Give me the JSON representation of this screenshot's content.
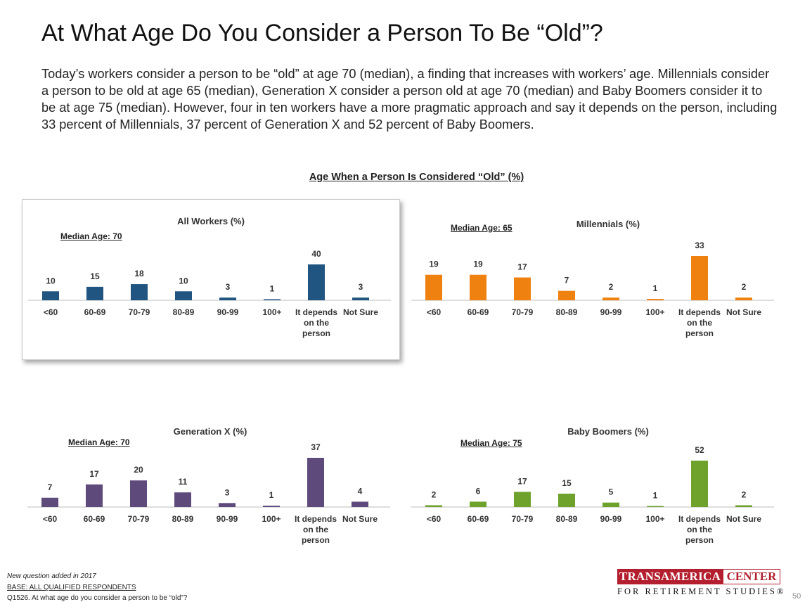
{
  "title": "At What Age Do You Consider a Person To Be “Old”?",
  "intro": "Today’s workers consider a person to be “old” at age 70 (median), a finding that increases with workers’ age. Millennials consider a person to be old at age 65 (median), Generation X consider a person old at age 70 (median) and Baby Boomers consider it to be at age 75 (median). However, four in ten workers have a more pragmatic approach and say it depends on the person, including 33 percent of Millennials, 37 percent of Generation X and 52 percent of Baby Boomers.",
  "section_title": "Age When a Person Is Considered “Old” (%)",
  "chart_data": [
    {
      "type": "bar",
      "title": "All Workers (%)",
      "median": "Median Age: 70",
      "color": "#1f5580",
      "categories": [
        "<60",
        "60-69",
        "70-79",
        "80-89",
        "90-99",
        "100+",
        "It depends on the person",
        "Not Sure"
      ],
      "values": [
        10,
        15,
        18,
        10,
        3,
        1,
        40,
        3
      ],
      "ylim": [
        0,
        40
      ]
    },
    {
      "type": "bar",
      "title": "Millennials (%)",
      "median": "Median Age: 65",
      "color": "#ef8110",
      "categories": [
        "<60",
        "60-69",
        "70-79",
        "80-89",
        "90-99",
        "100+",
        "It depends on the person",
        "Not Sure"
      ],
      "values": [
        19,
        19,
        17,
        7,
        2,
        1,
        33,
        2
      ],
      "ylim": [
        0,
        33
      ]
    },
    {
      "type": "bar",
      "title": "Generation X (%)",
      "median": "Median Age: 70",
      "color": "#5f4a7c",
      "categories": [
        "<60",
        "60-69",
        "70-79",
        "80-89",
        "90-99",
        "100+",
        "It depends on the person",
        "Not Sure"
      ],
      "values": [
        7,
        17,
        20,
        11,
        3,
        1,
        37,
        4
      ],
      "ylim": [
        0,
        37
      ]
    },
    {
      "type": "bar",
      "title": "Baby Boomers (%)",
      "median": "Median Age: 75",
      "color": "#6ea22c",
      "categories": [
        "<60",
        "60-69",
        "70-79",
        "80-89",
        "90-99",
        "100+",
        "It depends on the person",
        "Not Sure"
      ],
      "values": [
        2,
        6,
        17,
        15,
        5,
        1,
        52,
        2
      ],
      "ylim": [
        0,
        52
      ]
    }
  ],
  "footer": {
    "note": "New question added in 2017",
    "base": "BASE:  ALL QUALIFIED RESPONDENTS",
    "question": "Q1526. At what age do you consider a person to be “old”?"
  },
  "logo": {
    "word1": "TRANSAMERICA",
    "word2": "CENTER",
    "sub": "FOR RETIREMENT STUDIES®"
  },
  "page_number": "50"
}
